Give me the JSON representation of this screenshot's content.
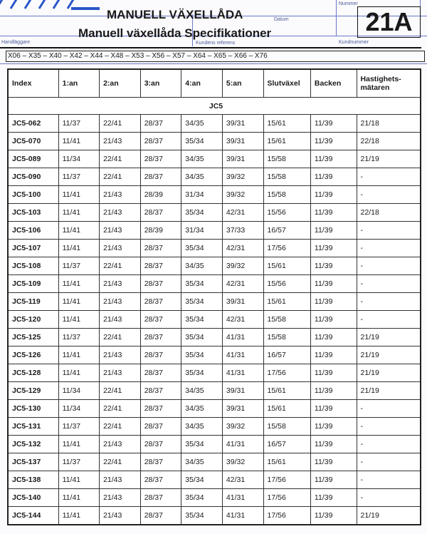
{
  "header": {
    "title": "MANUELL VÄXELLÅDA",
    "subtitle": "Manuell växellåda Specifikationer",
    "code": "21A",
    "form_labels": {
      "handlaggare": "Handläggare",
      "datum": "Datum",
      "kundens_referens": "Kundens referens",
      "kundnummer": "Kundnummer",
      "nummer": "Nummer"
    },
    "models": "X06 – X35 – X40 – X42 – X44 – X48 – X53 – X56 – X57 – X64 – X65 – X66 – X76"
  },
  "table": {
    "columns": [
      "Index",
      "1:an",
      "2:an",
      "3:an",
      "4:an",
      "5:an",
      "Slutväxel",
      "Backen",
      "Hastighets-\nmätaren"
    ],
    "group": "JC5",
    "rows": [
      [
        "JC5-062",
        "11/37",
        "22/41",
        "28/37",
        "34/35",
        "39/31",
        "15/61",
        "11/39",
        "21/18"
      ],
      [
        "JC5-070",
        "11/41",
        "21/43",
        "28/37",
        "35/34",
        "39/31",
        "15/61",
        "11/39",
        "22/18"
      ],
      [
        "JC5-089",
        "11/34",
        "22/41",
        "28/37",
        "34/35",
        "39/31",
        "15/58",
        "11/39",
        "21/19"
      ],
      [
        "JC5-090",
        "11/37",
        "22/41",
        "28/37",
        "34/35",
        "39/32",
        "15/58",
        "11/39",
        "-"
      ],
      [
        "JC5-100",
        "11/41",
        "21/43",
        "28/39",
        "31/34",
        "39/32",
        "15/58",
        "11/39",
        "-"
      ],
      [
        "JC5-103",
        "11/41",
        "21/43",
        "28/37",
        "35/34",
        "42/31",
        "15/56",
        "11/39",
        "22/18"
      ],
      [
        "JC5-106",
        "11/41",
        "21/43",
        "28/39",
        "31/34",
        "37/33",
        "16/57",
        "11/39",
        "-"
      ],
      [
        "JC5-107",
        "11/41",
        "21/43",
        "28/37",
        "35/34",
        "42/31",
        "17/56",
        "11/39",
        "-"
      ],
      [
        "JC5-108",
        "11/37",
        "22/41",
        "28/37",
        "34/35",
        "39/32",
        "15/61",
        "11/39",
        "-"
      ],
      [
        "JC5-109",
        "11/41",
        "21/43",
        "28/37",
        "35/34",
        "42/31",
        "15/56",
        "11/39",
        "-"
      ],
      [
        "JC5-119",
        "11/41",
        "21/43",
        "28/37",
        "35/34",
        "39/31",
        "15/61",
        "11/39",
        "-"
      ],
      [
        "JC5-120",
        "11/41",
        "21/43",
        "28/37",
        "35/34",
        "42/31",
        "15/58",
        "11/39",
        "-"
      ],
      [
        "JC5-125",
        "11/37",
        "22/41",
        "28/37",
        "35/34",
        "41/31",
        "15/58",
        "11/39",
        "21/19"
      ],
      [
        "JC5-126",
        "11/41",
        "21/43",
        "28/37",
        "35/34",
        "41/31",
        "16/57",
        "11/39",
        "21/19"
      ],
      [
        "JC5-128",
        "11/41",
        "21/43",
        "28/37",
        "35/34",
        "41/31",
        "17/56",
        "11/39",
        "21/19"
      ],
      [
        "JC5-129",
        "11/34",
        "22/41",
        "28/37",
        "34/35",
        "39/31",
        "15/61",
        "11/39",
        "21/19"
      ],
      [
        "JC5-130",
        "11/34",
        "22/41",
        "28/37",
        "34/35",
        "39/31",
        "15/61",
        "11/39",
        "-"
      ],
      [
        "JC5-131",
        "11/37",
        "22/41",
        "28/37",
        "34/35",
        "39/32",
        "15/58",
        "11/39",
        "-"
      ],
      [
        "JC5-132",
        "11/41",
        "21/43",
        "28/37",
        "35/34",
        "41/31",
        "16/57",
        "11/39",
        "-"
      ],
      [
        "JC5-137",
        "11/37",
        "22/41",
        "28/37",
        "34/35",
        "39/32",
        "15/61",
        "11/39",
        "-"
      ],
      [
        "JC5-138",
        "11/41",
        "21/43",
        "28/37",
        "35/34",
        "42/31",
        "17/56",
        "11/39",
        "-"
      ],
      [
        "JC5-140",
        "11/41",
        "21/43",
        "28/37",
        "35/34",
        "41/31",
        "17/56",
        "11/39",
        "-"
      ],
      [
        "JC5-144",
        "11/41",
        "21/43",
        "28/37",
        "35/34",
        "41/31",
        "17/56",
        "11/39",
        "21/19"
      ]
    ]
  },
  "colors": {
    "form_lines": "#6a78c8",
    "logo": "#2a56c8"
  }
}
